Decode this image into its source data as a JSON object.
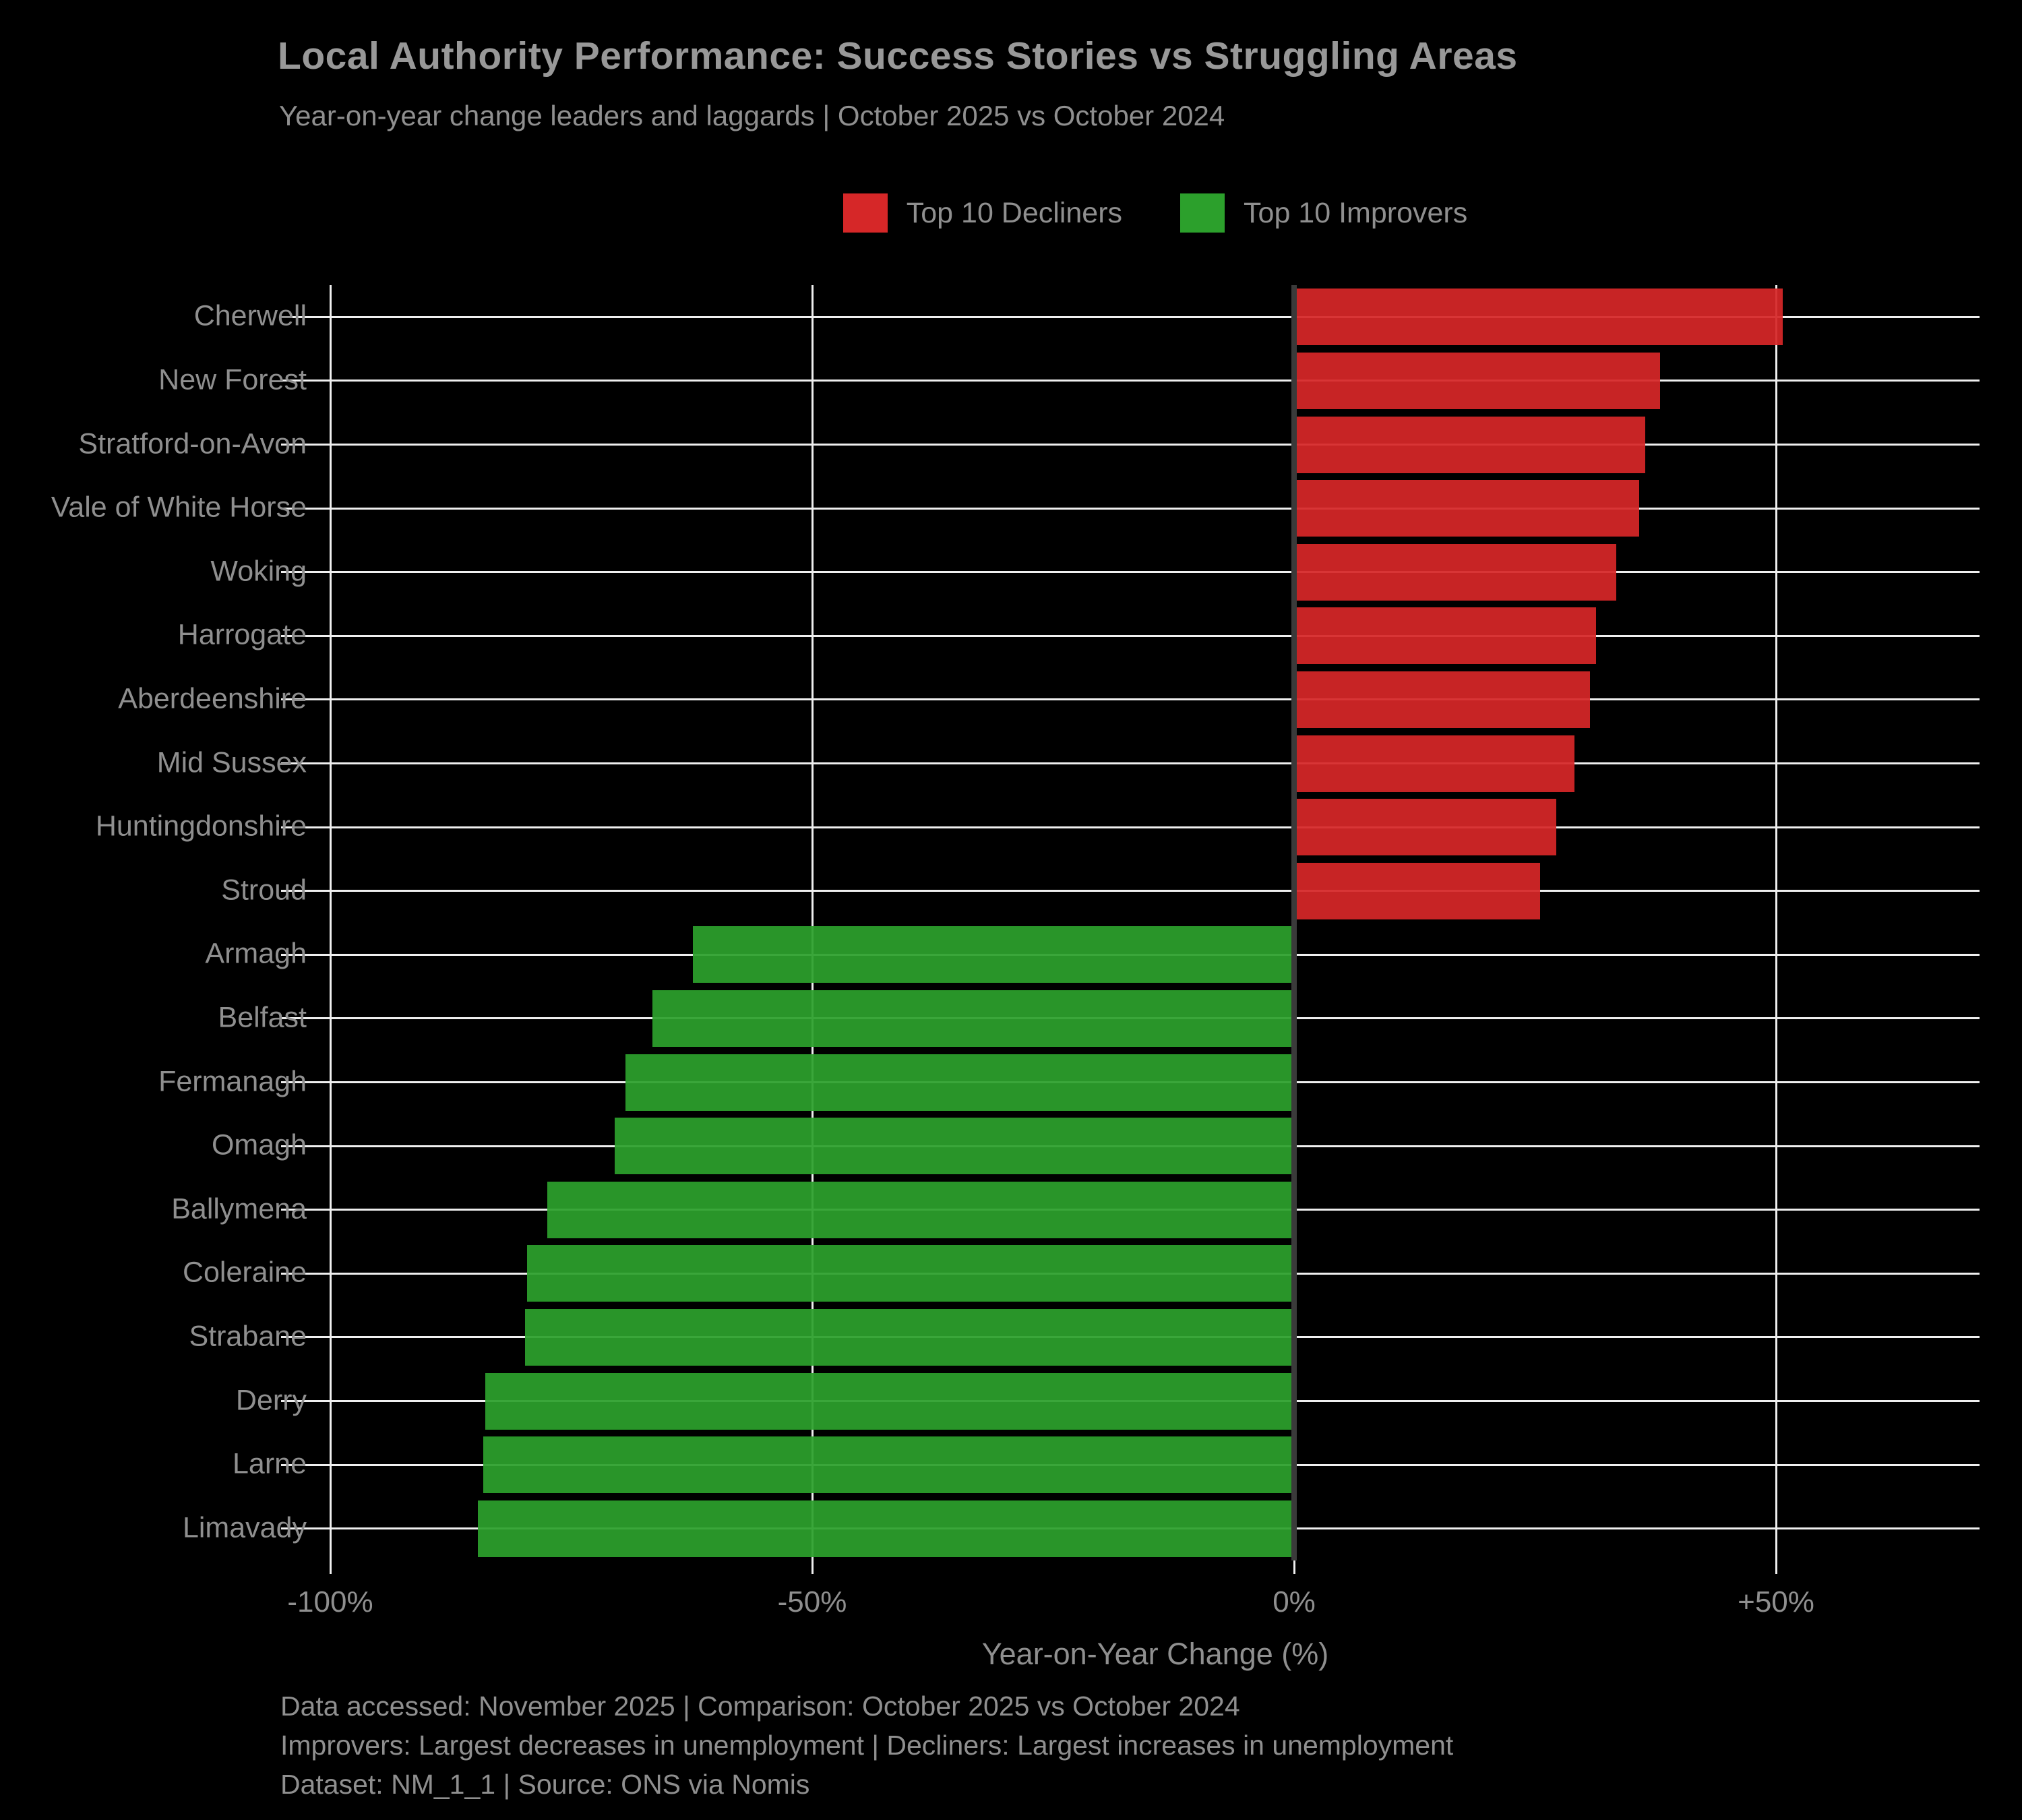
{
  "title": "Local Authority Performance: Success Stories vs Struggling Areas",
  "subtitle": "Year-on-year change leaders and laggards | October 2025 vs October 2024",
  "legend": {
    "decliners_label": "Top 10 Decliners",
    "improvers_label": "Top 10 Improvers"
  },
  "colors": {
    "background": "#000000",
    "decliner_red": "#d62728",
    "improver_green": "#2ca02c",
    "text_gray": "#8f8f8f",
    "gridline": "#efefef",
    "zero_axis": "#3a3a3a"
  },
  "chart_data": {
    "type": "bar",
    "orientation": "horizontal",
    "title": "Local Authority Performance: Success Stories vs Struggling Areas",
    "subtitle": "Year-on-year change leaders and laggards | October 2025 vs October 2024",
    "xlabel": "Year-on-Year Change (%)",
    "ylabel": "",
    "xlim": [
      -100,
      71
    ],
    "grid": true,
    "legend_position": "top-center",
    "categories": [
      "Cherwell",
      "New Forest",
      "Stratford-on-Avon",
      "Vale of White Horse",
      "Woking",
      "Harrogate",
      "Aberdeenshire",
      "Mid Sussex",
      "Huntingdonshire",
      "Stroud",
      "Armagh",
      "Belfast",
      "Fermanagh",
      "Omagh",
      "Ballymena",
      "Coleraine",
      "Strabane",
      "Derry",
      "Larne",
      "Limavady"
    ],
    "values": [
      50.7,
      38.0,
      36.4,
      35.8,
      33.4,
      31.3,
      30.7,
      29.1,
      27.2,
      25.5,
      -62.4,
      -66.6,
      -69.4,
      -70.5,
      -77.5,
      -79.6,
      -79.8,
      -83.9,
      -84.1,
      -84.7
    ],
    "groups": [
      "decliner",
      "decliner",
      "decliner",
      "decliner",
      "decliner",
      "decliner",
      "decliner",
      "decliner",
      "decliner",
      "decliner",
      "improver",
      "improver",
      "improver",
      "improver",
      "improver",
      "improver",
      "improver",
      "improver",
      "improver",
      "improver"
    ],
    "series": [
      {
        "name": "Top 10 Decliners",
        "color": "#d62728",
        "categories": [
          "Cherwell",
          "New Forest",
          "Stratford-on-Avon",
          "Vale of White Horse",
          "Woking",
          "Harrogate",
          "Aberdeenshire",
          "Mid Sussex",
          "Huntingdonshire",
          "Stroud"
        ],
        "values": [
          50.7,
          38.0,
          36.4,
          35.8,
          33.4,
          31.3,
          30.7,
          29.1,
          27.2,
          25.5
        ]
      },
      {
        "name": "Top 10 Improvers",
        "color": "#2ca02c",
        "categories": [
          "Armagh",
          "Belfast",
          "Fermanagh",
          "Omagh",
          "Ballymena",
          "Coleraine",
          "Strabane",
          "Derry",
          "Larne",
          "Limavady"
        ],
        "values": [
          -62.4,
          -66.6,
          -69.4,
          -70.5,
          -77.5,
          -79.6,
          -79.8,
          -83.9,
          -84.1,
          -84.7
        ]
      }
    ],
    "xticks": [
      {
        "label": "-100%",
        "value": -100
      },
      {
        "label": "-50%",
        "value": -50
      },
      {
        "label": "0%",
        "value": 0
      },
      {
        "label": "+50%",
        "value": 50
      }
    ]
  },
  "footer": {
    "line1": "Data accessed: November 2025 | Comparison: October 2025 vs October 2024",
    "line2": "Improvers: Largest decreases in unemployment | Decliners: Largest increases in unemployment",
    "line3": "Dataset: NM_1_1 | Source: ONS via Nomis"
  }
}
